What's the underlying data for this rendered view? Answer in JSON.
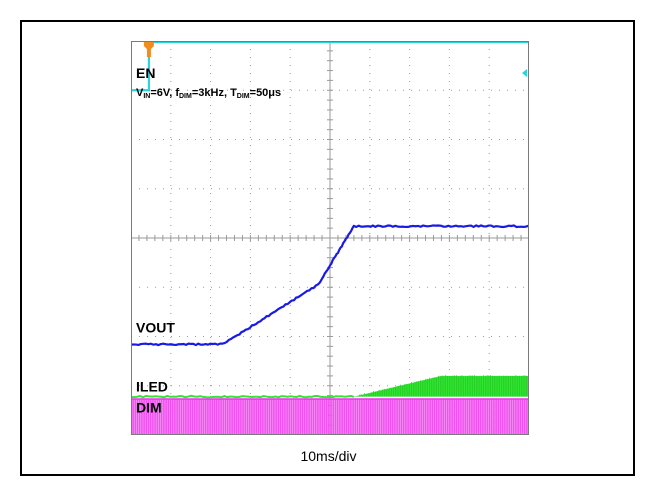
{
  "chart_data": {
    "type": "line",
    "caption": "10ms/div",
    "conditions": "V_IN=6V, f_DIM=3kHz, T_DIM=50μs",
    "conditions_parts": {
      "vin": "V",
      "vin_sub": "IN",
      "vin_val": "=6V, ",
      "fdim": "f",
      "fdim_sub": "DIM",
      "fdim_val": "=3kHz, ",
      "tdim": "T",
      "tdim_sub": "DIM",
      "tdim_val": "=50μs"
    },
    "x_divisions": 10,
    "y_divisions": 8,
    "time_per_div": "10ms/div",
    "series": [
      {
        "name": "EN",
        "color": "#29d4df",
        "x": [
          0,
          0.45,
          0.45,
          10
        ],
        "y": [
          7.0,
          7.0,
          7.98,
          7.98
        ]
      },
      {
        "name": "VOUT",
        "color": "#1a1ae6",
        "x": [
          0,
          1.0,
          1.2,
          2.3,
          4.2,
          4.7,
          5.6,
          6.2,
          10
        ],
        "y": [
          1.84,
          1.84,
          1.84,
          1.84,
          2.8,
          3.05,
          4.24,
          4.24,
          4.24
        ]
      },
      {
        "name": "ILED",
        "color": "#33e633",
        "x": [
          0,
          5.6,
          7.8,
          10
        ],
        "y": [
          0.78,
          0.78,
          1.2,
          1.2
        ]
      },
      {
        "name": "DIM",
        "color": "#ee33ee",
        "x": [
          0,
          10
        ],
        "y": [
          0,
          0
        ]
      }
    ]
  }
}
